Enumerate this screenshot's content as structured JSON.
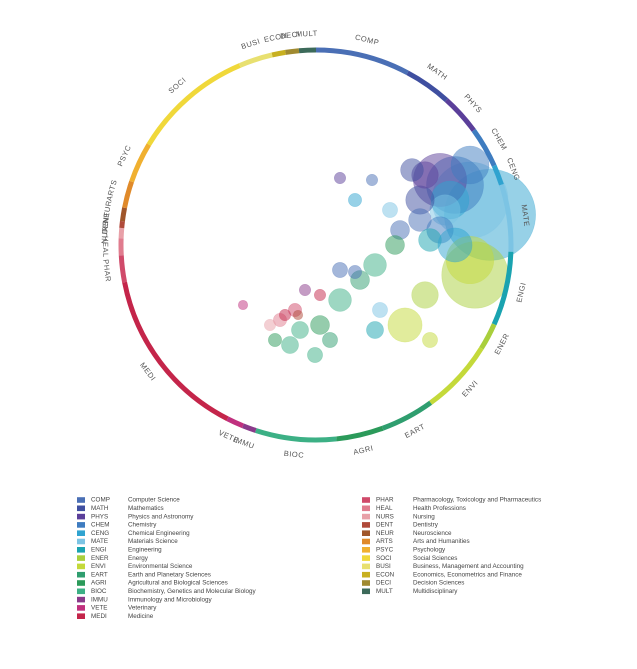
{
  "chart_data": {
    "type": "bubble-ring",
    "fields": [
      {
        "code": "COMP",
        "name": "Computer Science",
        "color": "#4a6fb5",
        "span": 28
      },
      {
        "code": "MATH",
        "name": "Mathematics",
        "color": "#3f4fa0",
        "span": 14
      },
      {
        "code": "PHYS",
        "name": "Physics and Astronomy",
        "color": "#5b3f9a",
        "span": 12
      },
      {
        "code": "CHEM",
        "name": "Chemistry",
        "color": "#3e7cc0",
        "span": 12
      },
      {
        "code": "CENG",
        "name": "Chemical Engineering",
        "color": "#2fa3d0",
        "span": 6
      },
      {
        "code": "MATE",
        "name": "Materials Science",
        "color": "#7cc4e4",
        "span": 20
      },
      {
        "code": "ENGI",
        "name": "Engineering",
        "color": "#1aa3b0",
        "span": 22
      },
      {
        "code": "ENER",
        "name": "Energy",
        "color": "#a9cf3c",
        "span": 8
      },
      {
        "code": "ENVI",
        "name": "Environmental Science",
        "color": "#c4d93a",
        "span": 22
      },
      {
        "code": "EART",
        "name": "Earth and Planetary Sciences",
        "color": "#2f9e6f",
        "span": 16
      },
      {
        "code": "AGRI",
        "name": "Agricultural and Biological Sciences",
        "color": "#2b9a5a",
        "span": 14
      },
      {
        "code": "BIOC",
        "name": "Biochemistry, Genetics and Molecular Biology",
        "color": "#3cb085",
        "span": 24
      },
      {
        "code": "IMMU",
        "name": "Immunology and Microbiology",
        "color": "#8a3a8a",
        "span": 4
      },
      {
        "code": "VETE",
        "name": "Veterinary",
        "color": "#c0307e",
        "span": 5
      },
      {
        "code": "MEDI",
        "name": "Medicine",
        "color": "#c4254a",
        "span": 52
      },
      {
        "code": "PHAR",
        "name": "Pharmacology, Toxicology and Pharmaceutics",
        "color": "#d04a6a",
        "span": 8
      },
      {
        "code": "HEAL",
        "name": "Health Professions",
        "color": "#e07c8e",
        "span": 5
      },
      {
        "code": "NURS",
        "name": "Nursing",
        "color": "#e8a0a8",
        "span": 3
      },
      {
        "code": "DENT",
        "name": "Dentistry",
        "color": "#b04a3a",
        "span": 2
      },
      {
        "code": "NEUR",
        "name": "Neuroscience",
        "color": "#a0562a",
        "span": 4
      },
      {
        "code": "ARTS",
        "name": "Arts and Humanities",
        "color": "#e08a2a",
        "span": 8
      },
      {
        "code": "PSYC",
        "name": "Psychology",
        "color": "#f0b030",
        "span": 12
      },
      {
        "code": "SOCI",
        "name": "Social Sciences",
        "color": "#f0d83a",
        "span": 36
      },
      {
        "code": "BUSI",
        "name": "Business, Management and Accounting",
        "color": "#e8e070",
        "span": 10
      },
      {
        "code": "ECON",
        "name": "Economics, Econometrics and Finance",
        "color": "#c8b020",
        "span": 4
      },
      {
        "code": "DECI",
        "name": "Decision Sciences",
        "color": "#a08a30",
        "span": 4
      },
      {
        "code": "MULT",
        "name": "Multidisciplinary",
        "color": "#3c6a5a",
        "span": 5
      }
    ],
    "bubbles": [
      {
        "field": "CENG",
        "x": 92.5,
        "y": 56.3,
        "size": 48
      },
      {
        "field": "MATE",
        "x": 87.5,
        "y": 60,
        "size": 40
      },
      {
        "field": "ENER",
        "x": 88.75,
        "y": 41.25,
        "size": 35
      },
      {
        "field": "CHEM",
        "x": 83.75,
        "y": 63.75,
        "size": 30
      },
      {
        "field": "PHYS",
        "x": 80,
        "y": 65,
        "size": 28
      },
      {
        "field": "ENVI",
        "x": 87.5,
        "y": 45,
        "size": 25
      },
      {
        "field": "CHEM",
        "x": 87.5,
        "y": 68.75,
        "size": 20
      },
      {
        "field": "CENG",
        "x": 82.5,
        "y": 60,
        "size": 20
      },
      {
        "field": "MATE",
        "x": 81.25,
        "y": 57.5,
        "size": 16
      },
      {
        "field": "MATH",
        "x": 75,
        "y": 60,
        "size": 15
      },
      {
        "field": "PHYS",
        "x": 76.25,
        "y": 66.25,
        "size": 14
      },
      {
        "field": "MATH",
        "x": 73,
        "y": 67.5,
        "size": 12
      },
      {
        "field": "COMP",
        "x": 75,
        "y": 55,
        "size": 12
      },
      {
        "field": "COMP",
        "x": 70,
        "y": 52.5,
        "size": 10
      },
      {
        "field": "CHEM",
        "x": 80,
        "y": 52.5,
        "size": 14
      },
      {
        "field": "ENGI",
        "x": 77.5,
        "y": 50,
        "size": 12
      },
      {
        "field": "CENG",
        "x": 83.75,
        "y": 48.75,
        "size": 18
      },
      {
        "field": "MATE",
        "x": 67.5,
        "y": 57.5,
        "size": 8
      },
      {
        "field": "PHYS",
        "x": 55,
        "y": 65.5,
        "size": 6
      },
      {
        "field": "COMP",
        "x": 63,
        "y": 65,
        "size": 6
      },
      {
        "field": "CENG",
        "x": 58.75,
        "y": 60,
        "size": 7
      },
      {
        "field": "AGRI",
        "x": 68.75,
        "y": 48.75,
        "size": 10
      },
      {
        "field": "BIOC",
        "x": 63.75,
        "y": 43.75,
        "size": 12
      },
      {
        "field": "ENVI",
        "x": 71.25,
        "y": 28.75,
        "size": 18
      },
      {
        "field": "ENER",
        "x": 76.25,
        "y": 36.25,
        "size": 14
      },
      {
        "field": "EART",
        "x": 60,
        "y": 40,
        "size": 10
      },
      {
        "field": "BIOC",
        "x": 55,
        "y": 35,
        "size": 12
      },
      {
        "field": "AGRI",
        "x": 50,
        "y": 28.75,
        "size": 10
      },
      {
        "field": "BIOC",
        "x": 45,
        "y": 27.5,
        "size": 9
      },
      {
        "field": "COMP",
        "x": 55,
        "y": 42.5,
        "size": 8
      },
      {
        "field": "IMMU",
        "x": 46.25,
        "y": 37.5,
        "size": 6
      },
      {
        "field": "MEDI",
        "x": 50,
        "y": 36.25,
        "size": 6
      },
      {
        "field": "PHAR",
        "x": 43.75,
        "y": 32.5,
        "size": 7
      },
      {
        "field": "HEAL",
        "x": 40,
        "y": 30,
        "size": 7
      },
      {
        "field": "NURS",
        "x": 37.5,
        "y": 28.75,
        "size": 6
      },
      {
        "field": "MEDI",
        "x": 41.25,
        "y": 31.25,
        "size": 6
      },
      {
        "field": "BIOC",
        "x": 42.5,
        "y": 23.75,
        "size": 9
      },
      {
        "field": "AGRI",
        "x": 38.75,
        "y": 25,
        "size": 7
      },
      {
        "field": "EART",
        "x": 52.5,
        "y": 25,
        "size": 8
      },
      {
        "field": "BIOC",
        "x": 48.75,
        "y": 21.25,
        "size": 8
      },
      {
        "field": "VETE",
        "x": 30.75,
        "y": 33.75,
        "size": 5
      },
      {
        "field": "DENT",
        "x": 44.5,
        "y": 31.25,
        "size": 5
      },
      {
        "field": "MATE",
        "x": 65,
        "y": 32.5,
        "size": 8
      },
      {
        "field": "ENVI",
        "x": 77.5,
        "y": 25,
        "size": 8
      },
      {
        "field": "ENGI",
        "x": 63.75,
        "y": 27.5,
        "size": 9
      },
      {
        "field": "COMP",
        "x": 58.75,
        "y": 42,
        "size": 7
      }
    ]
  }
}
